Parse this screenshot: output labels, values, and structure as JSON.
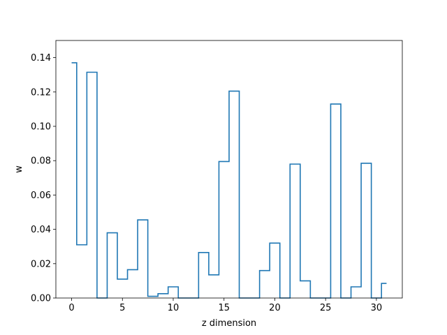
{
  "chart_data": {
    "type": "line",
    "style": "step",
    "xlabel": "z dimension",
    "ylabel": "w",
    "xlim": [
      -1.55,
      32.55
    ],
    "ylim": [
      0,
      0.15
    ],
    "xticks": [
      0,
      5,
      10,
      15,
      20,
      25,
      30
    ],
    "yticks": [
      0.0,
      0.02,
      0.04,
      0.06,
      0.08,
      0.1,
      0.12,
      0.14
    ],
    "ytick_labels": [
      "0.00",
      "0.02",
      "0.04",
      "0.06",
      "0.08",
      "0.10",
      "0.12",
      "0.14"
    ],
    "grid": false,
    "line_color": "#1f77b4",
    "x": [
      0,
      1,
      2,
      3,
      4,
      5,
      6,
      7,
      8,
      9,
      10,
      11,
      12,
      13,
      14,
      15,
      16,
      17,
      18,
      19,
      20,
      21,
      22,
      23,
      24,
      25,
      26,
      27,
      28,
      29,
      30,
      31
    ],
    "values": [
      0.137,
      0.031,
      0.1315,
      0.0,
      0.038,
      0.011,
      0.0165,
      0.0455,
      0.001,
      0.0025,
      0.0065,
      0.0,
      0.0,
      0.0265,
      0.0135,
      0.0795,
      0.1205,
      0.0,
      0.0,
      0.016,
      0.032,
      0.0,
      0.078,
      0.01,
      0.0,
      0.0,
      0.113,
      0.0,
      0.0065,
      0.0785,
      0.0,
      0.0085
    ]
  }
}
